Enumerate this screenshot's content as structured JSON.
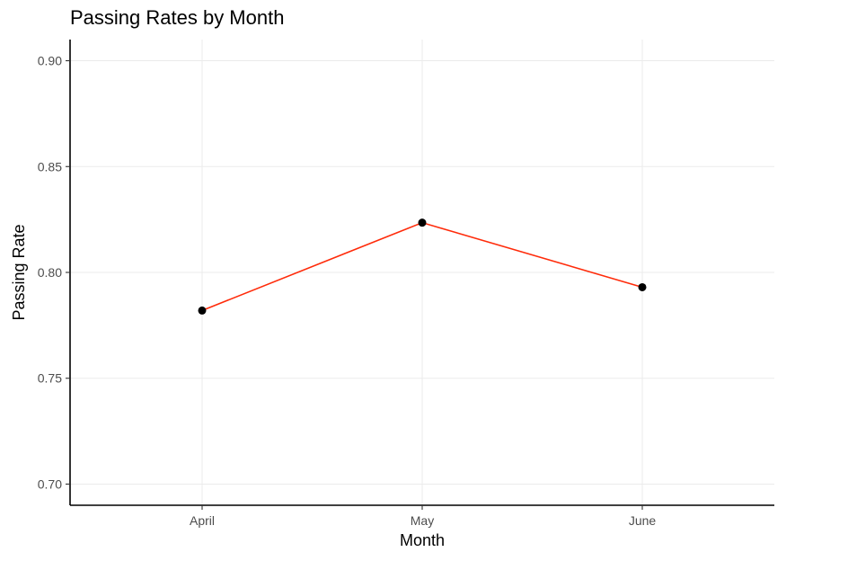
{
  "chart_data": {
    "type": "line",
    "title": "Passing Rates by Month",
    "xlabel": "Month",
    "ylabel": "Passing Rate",
    "categories": [
      "April",
      "May",
      "June"
    ],
    "series": [
      {
        "values": [
          0.782,
          0.8235,
          0.793
        ]
      }
    ],
    "ylim": [
      0.69,
      0.91
    ],
    "yticks": [
      0.7,
      0.75,
      0.8,
      0.85,
      0.9
    ],
    "ytick_labels": [
      "0.70",
      "0.75",
      "0.80",
      "0.85",
      "0.90"
    ],
    "grid": true,
    "line_color": "#ff2b0a",
    "point_color": "#000000"
  }
}
